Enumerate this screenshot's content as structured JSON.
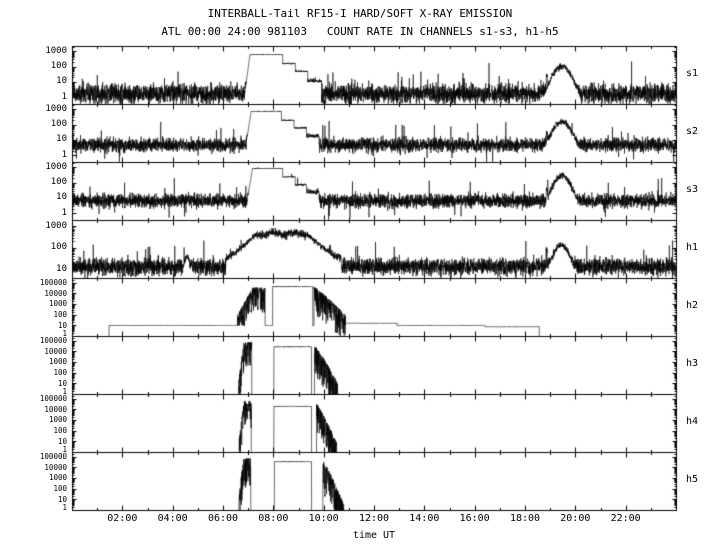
{
  "chart_data": {
    "type": "line",
    "title": "INTERBALL-Tail RF15-I HARD/SOFT X-RAY EMISSION",
    "subtitle": "ATL 00:00 24:00 981103   COUNT RATE IN CHANNELS s1-s3, h1-h5",
    "xlabel": "time UT",
    "x_range_hours": [
      0,
      24
    ],
    "x_ticks": [
      2,
      4,
      6,
      8,
      10,
      12,
      14,
      16,
      18,
      20,
      22
    ],
    "x_tick_labels": [
      "02:00",
      "04:00",
      "06:00",
      "08:00",
      "10:00",
      "12:00",
      "14:00",
      "16:00",
      "18:00",
      "20:00",
      "22:00"
    ],
    "x_minor_step_hours": 1,
    "yscale": "log",
    "grid": false,
    "legend": "none",
    "panels": [
      {
        "id": "s1",
        "label": "s1",
        "kind": "soft",
        "seed": 11,
        "ylog_min": -0.45,
        "ylog_max": 3.35,
        "ytick_values": [
          1000,
          100,
          10,
          1
        ],
        "ytick_labels": [
          "1000",
          "100",
          "10",
          "1"
        ],
        "baseline": 1.8,
        "noise_sigma": 0.7,
        "flare": {
          "rise_start": 6.85,
          "rise_end": 7.05,
          "plateau": 650,
          "plateau_end": 8.35,
          "steps": [
            [
              8.35,
              8.85,
              170
            ],
            [
              8.85,
              9.35,
              50
            ],
            [
              9.35,
              9.9,
              10
            ]
          ]
        },
        "bump": {
          "center": 19.45,
          "sigma": 0.22,
          "amp": 110
        },
        "spike": {
          "t": 18.85,
          "amp": 25
        }
      },
      {
        "id": "s2",
        "label": "s2",
        "kind": "soft",
        "seed": 22,
        "ylog_min": -0.45,
        "ylog_max": 3.35,
        "ytick_values": [
          1000,
          100,
          10,
          1
        ],
        "ytick_labels": [
          "1000",
          "100",
          "10",
          "1"
        ],
        "baseline": 5.0,
        "noise_sigma": 0.5,
        "flare": {
          "rise_start": 6.9,
          "rise_end": 7.1,
          "plateau": 800,
          "plateau_end": 8.3,
          "steps": [
            [
              8.3,
              8.8,
              200
            ],
            [
              8.8,
              9.3,
              60
            ],
            [
              9.3,
              9.8,
              14
            ]
          ]
        },
        "bump": {
          "center": 19.45,
          "sigma": 0.22,
          "amp": 150
        },
        "spike": {
          "t": 18.85,
          "amp": 30
        }
      },
      {
        "id": "s3",
        "label": "s3",
        "kind": "soft",
        "seed": 33,
        "ylog_min": -0.45,
        "ylog_max": 3.35,
        "ytick_values": [
          1000,
          100,
          10,
          1
        ],
        "ytick_labels": [
          "1000",
          "100",
          "10",
          "1"
        ],
        "baseline": 7.0,
        "noise_sigma": 0.5,
        "flare": {
          "rise_start": 6.95,
          "rise_end": 7.15,
          "plateau": 900,
          "plateau_end": 8.35,
          "steps": [
            [
              8.35,
              8.85,
              250
            ],
            [
              8.85,
              9.3,
              70
            ],
            [
              9.3,
              9.8,
              18
            ]
          ]
        },
        "bump": {
          "center": 19.45,
          "sigma": 0.2,
          "amp": 300
        },
        "spike": {
          "t": 18.85,
          "amp": 35
        }
      },
      {
        "id": "h1",
        "label": "h1",
        "kind": "h1",
        "seed": 44,
        "ylog_min": 0.6,
        "ylog_max": 3.3,
        "ytick_values": [
          1000,
          100,
          10
        ],
        "ytick_labels": [
          "1000",
          "100",
          "10"
        ],
        "baseline": 14,
        "noise_sigma": 0.45,
        "flare": {
          "rise_start": 6.1,
          "rise_end": 7.3,
          "plateau": 460,
          "plateau_end": 9.3,
          "decay_end": 10.7
        },
        "bump2": {
          "center": 4.55,
          "sigma": 0.07,
          "amp": 26
        },
        "bump": {
          "center": 19.42,
          "sigma": 0.2,
          "amp": 130
        },
        "spike": {
          "t": 18.85,
          "amp": 70
        }
      },
      {
        "id": "h2",
        "label": "h2",
        "kind": "hard",
        "seed": 55,
        "ylog_min": 0,
        "ylog_max": 5.45,
        "ytick_values": [
          100000,
          10000,
          1000,
          100,
          10,
          1
        ],
        "ytick_labels": [
          "100000",
          "10000",
          "1000",
          "100",
          "10",
          "1"
        ],
        "base_steps": [
          [
            1.45,
            10.85,
            11
          ],
          [
            10.85,
            12.9,
            18
          ],
          [
            12.9,
            16.4,
            11
          ],
          [
            16.4,
            18.55,
            8
          ]
        ],
        "clusterA": {
          "start": 6.55,
          "end": 7.65,
          "lo": 2.0,
          "hi": 4.6,
          "ramp": 1.8,
          "depth": 2.4
        },
        "plateau": {
          "start": 7.95,
          "end": 9.55,
          "level": 48000
        },
        "clusterB": {
          "start": 9.6,
          "end": 10.85,
          "hi": 4.65,
          "lo": 2.0,
          "depth": 2.6
        }
      },
      {
        "id": "h3",
        "label": "h3",
        "kind": "hard",
        "seed": 66,
        "ylog_min": 0,
        "ylog_max": 5.45,
        "ytick_values": [
          100000,
          10000,
          1000,
          100,
          10,
          1
        ],
        "ytick_labels": [
          "100000",
          "10000",
          "1000",
          "100",
          "10",
          "1"
        ],
        "base_steps": [],
        "clusterA": {
          "start": 6.6,
          "end": 7.12,
          "lo": 1.2,
          "hi": 4.9,
          "ramp": 2.5,
          "depth": 2.6
        },
        "plateau": {
          "start": 8.0,
          "end": 9.5,
          "level": 30000
        },
        "clusterB": {
          "start": 9.62,
          "end": 10.55,
          "hi": 4.6,
          "lo": 1.0,
          "depth": 2.8
        }
      },
      {
        "id": "h4",
        "label": "h4",
        "kind": "hard",
        "seed": 77,
        "ylog_min": 0,
        "ylog_max": 5.45,
        "ytick_values": [
          100000,
          10000,
          1000,
          100,
          10,
          1
        ],
        "ytick_labels": [
          "100000",
          "10000",
          "1000",
          "100",
          "10",
          "1"
        ],
        "base_steps": [],
        "clusterA": {
          "start": 6.62,
          "end": 7.1,
          "lo": 1.2,
          "hi": 4.85,
          "ramp": 2.5,
          "depth": 2.6
        },
        "plateau": {
          "start": 8.0,
          "end": 9.5,
          "level": 22000
        },
        "clusterB": {
          "start": 9.7,
          "end": 10.5,
          "hi": 4.55,
          "lo": 0.9,
          "depth": 2.8
        }
      },
      {
        "id": "h5",
        "label": "h5",
        "kind": "hard",
        "seed": 88,
        "ylog_min": 0,
        "ylog_max": 5.45,
        "ytick_values": [
          100000,
          10000,
          1000,
          100,
          10,
          1
        ],
        "ytick_labels": [
          "100000",
          "10000",
          "1000",
          "100",
          "10",
          "1"
        ],
        "base_steps": [],
        "clusterA": {
          "start": 6.6,
          "end": 7.08,
          "lo": 1.0,
          "hi": 4.9,
          "ramp": 2.5,
          "depth": 2.8
        },
        "plateau": {
          "start": 8.02,
          "end": 9.5,
          "level": 38000
        },
        "clusterB": {
          "start": 9.95,
          "end": 10.78,
          "hi": 4.7,
          "lo": 0.6,
          "depth": 3.2
        }
      }
    ]
  }
}
